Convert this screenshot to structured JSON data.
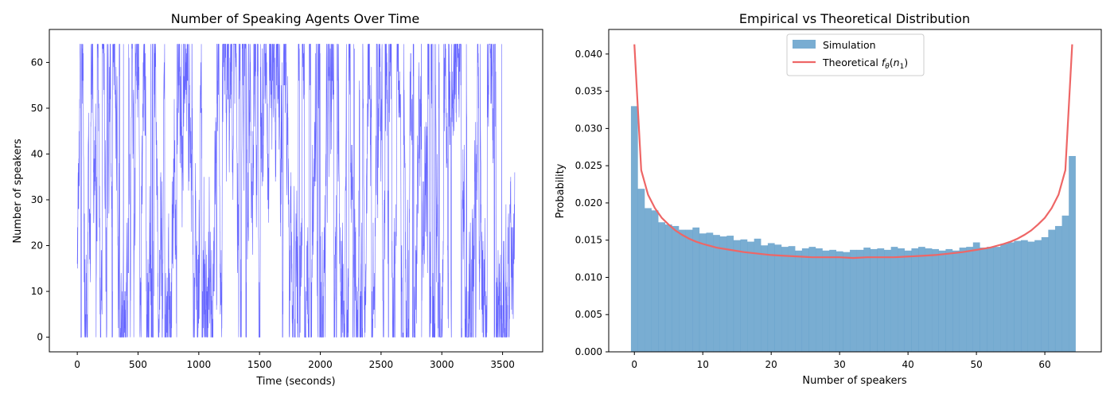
{
  "chart_data": [
    {
      "type": "line",
      "title": "Number of Speaking Agents Over Time",
      "xlabel": "Time (seconds)",
      "ylabel": "Number of speakers",
      "xlim": [
        -230,
        3830
      ],
      "ylim": [
        -3.2,
        67.2
      ],
      "xticks": [
        0,
        500,
        1000,
        1500,
        2000,
        2500,
        3000,
        3500
      ],
      "yticks": [
        0,
        10,
        20,
        30,
        40,
        50,
        60
      ],
      "grid": false,
      "color": "#6666ff",
      "series": [
        {
          "description": "dense random walk between 0 and 64 speakers, sampled ~1/s for 3600 s",
          "x_range": [
            0,
            3600
          ],
          "y_min": 0,
          "y_max": 64
        }
      ]
    },
    {
      "type": "bar",
      "title": "Empirical vs Theoretical Distribution",
      "xlabel": "Number of speakers",
      "ylabel": "Probability",
      "xlim": [
        -3.75,
        68.25
      ],
      "ylim": [
        0,
        0.0433
      ],
      "xticks": [
        0,
        10,
        20,
        30,
        40,
        50,
        60
      ],
      "yticks": [
        "0.000",
        "0.005",
        "0.010",
        "0.015",
        "0.020",
        "0.025",
        "0.030",
        "0.035",
        "0.040"
      ],
      "legend_position": "top-center",
      "grid": false,
      "series": [
        {
          "name": "Simulation",
          "kind": "histogram",
          "color": "#1f77b4",
          "alpha": 0.6,
          "bin_start": 0,
          "bin_width": 1,
          "values": [
            0.033,
            0.0219,
            0.0193,
            0.019,
            0.0174,
            0.0171,
            0.0169,
            0.0164,
            0.0164,
            0.0167,
            0.0159,
            0.016,
            0.0157,
            0.0155,
            0.0156,
            0.015,
            0.0151,
            0.0148,
            0.0152,
            0.0143,
            0.0146,
            0.0144,
            0.0141,
            0.0142,
            0.0136,
            0.0139,
            0.0141,
            0.0139,
            0.0136,
            0.0137,
            0.0135,
            0.0134,
            0.0137,
            0.0137,
            0.014,
            0.0138,
            0.0139,
            0.0137,
            0.0141,
            0.0139,
            0.0136,
            0.0139,
            0.0141,
            0.0139,
            0.0138,
            0.0136,
            0.0138,
            0.0136,
            0.014,
            0.0141,
            0.0147,
            0.014,
            0.0141,
            0.0141,
            0.0145,
            0.0147,
            0.0149,
            0.015,
            0.0148,
            0.015,
            0.0154,
            0.0164,
            0.0169,
            0.0183,
            0.0263
          ]
        },
        {
          "name_prefix": "Theoretical ",
          "name_math": "f",
          "name_sub": "θ",
          "name_paren_open": "(",
          "name_n": "n",
          "name_n_sub": "1",
          "name_paren_close": ")",
          "kind": "line",
          "color": "#ee6666",
          "x": [
            0,
            1,
            2,
            3,
            4,
            5,
            6,
            7,
            8,
            9,
            10,
            12,
            14,
            16,
            18,
            20,
            22,
            24,
            26,
            28,
            30,
            32,
            34,
            36,
            38,
            40,
            42,
            44,
            46,
            48,
            50,
            52,
            54,
            55,
            56,
            57,
            58,
            59,
            60,
            61,
            62,
            63,
            64
          ],
          "values": [
            0.0413,
            0.0244,
            0.0211,
            0.0193,
            0.018,
            0.0171,
            0.0163,
            0.0157,
            0.0152,
            0.0148,
            0.0145,
            0.014,
            0.0137,
            0.0134,
            0.0132,
            0.013,
            0.0129,
            0.0128,
            0.0127,
            0.0127,
            0.0127,
            0.0126,
            0.0127,
            0.0127,
            0.0127,
            0.0128,
            0.0129,
            0.013,
            0.0132,
            0.0134,
            0.0137,
            0.014,
            0.0145,
            0.0148,
            0.0152,
            0.0157,
            0.0163,
            0.0171,
            0.018,
            0.0193,
            0.0211,
            0.0244,
            0.0413
          ]
        }
      ]
    }
  ]
}
